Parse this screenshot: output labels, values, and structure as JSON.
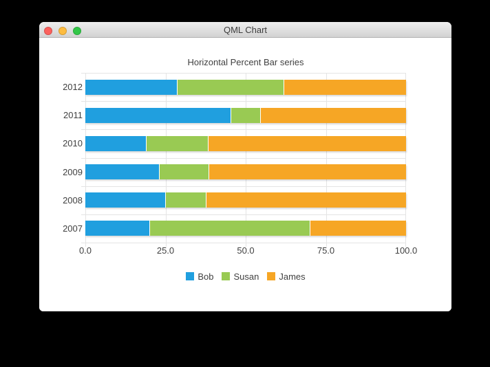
{
  "window": {
    "title": "QML Chart",
    "controls": [
      {
        "name": "close",
        "color": "#fc615d"
      },
      {
        "name": "minimize",
        "color": "#fdbc40"
      },
      {
        "name": "zoom",
        "color": "#33c748"
      }
    ]
  },
  "colors": {
    "background": "#000000",
    "window_background": "#ffffff",
    "gridline": "#e4e4e4",
    "label_text": "#404040",
    "titlebar_text": "#3b3b3b"
  },
  "chart_data": {
    "type": "bar",
    "orientation": "horizontal",
    "stacking": "percent",
    "title": "Horizontal Percent Bar series",
    "categories_order": "top-to-bottom",
    "categories": [
      "2012",
      "2011",
      "2010",
      "2009",
      "2008",
      "2007"
    ],
    "series": [
      {
        "name": "Bob",
        "color": "#209fdf",
        "values": [
          6,
          5,
          4,
          3,
          2,
          2
        ]
      },
      {
        "name": "Susan",
        "color": "#99ca53",
        "values": [
          7,
          1,
          4,
          2,
          1,
          5
        ]
      },
      {
        "name": "James",
        "color": "#f6a625",
        "values": [
          8,
          5,
          13,
          8,
          5,
          3
        ]
      }
    ],
    "percent_by_row": {
      "2012": [
        28.6,
        33.3,
        38.1
      ],
      "2011": [
        45.5,
        9.1,
        45.5
      ],
      "2010": [
        19.0,
        19.0,
        62.0
      ],
      "2009": [
        23.1,
        15.4,
        61.5
      ],
      "2008": [
        25.0,
        12.5,
        62.5
      ],
      "2007": [
        20.0,
        50.0,
        30.0
      ]
    },
    "x_ticks": [
      "0.0",
      "25.0",
      "50.0",
      "75.0",
      "100.0"
    ],
    "xlim": [
      0,
      100
    ],
    "grid": true,
    "legend_position": "bottom"
  }
}
